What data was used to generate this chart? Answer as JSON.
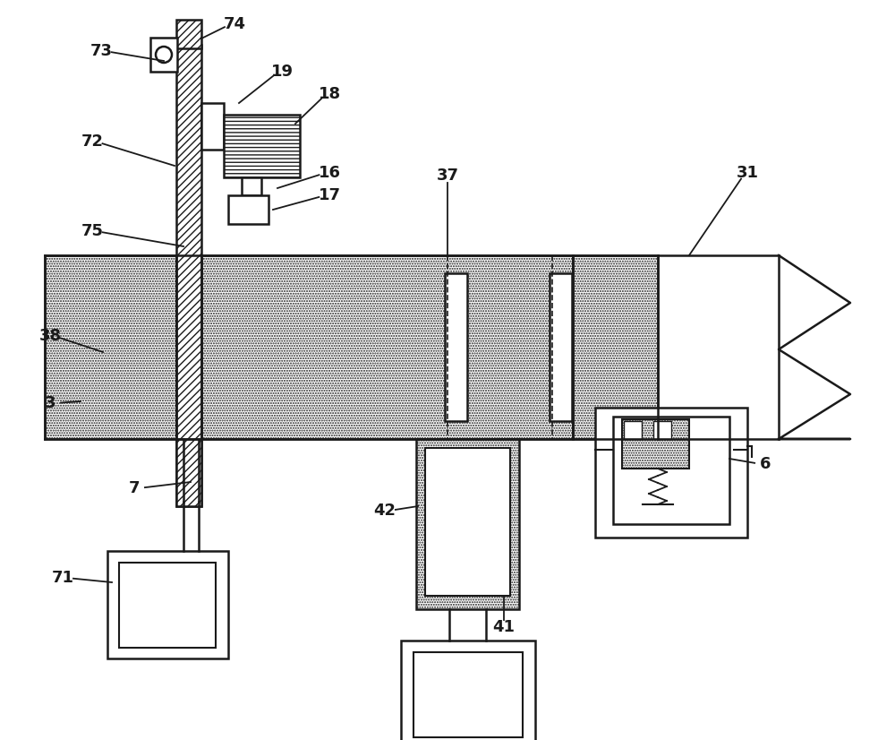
{
  "bg": "#ffffff",
  "lc": "#1a1a1a",
  "lw": 1.8,
  "label_fs": 13,
  "label_fw": "bold",
  "labels": {
    "73": [
      113,
      57,
      183,
      68
    ],
    "74": [
      262,
      27,
      225,
      43
    ],
    "19": [
      315,
      80,
      267,
      115
    ],
    "18": [
      368,
      105,
      330,
      138
    ],
    "72": [
      103,
      158,
      195,
      185
    ],
    "16": [
      368,
      193,
      310,
      210
    ],
    "17": [
      368,
      218,
      305,
      234
    ],
    "75": [
      103,
      258,
      205,
      275
    ],
    "38": [
      56,
      375,
      115,
      393
    ],
    "3": [
      56,
      450,
      90,
      448
    ],
    "37": [
      500,
      196,
      500,
      285
    ],
    "31": [
      835,
      193,
      770,
      285
    ],
    "7": [
      150,
      545,
      213,
      538
    ],
    "71": [
      70,
      645,
      125,
      650
    ],
    "42": [
      430,
      570,
      467,
      565
    ],
    "41": [
      563,
      700,
      563,
      665
    ],
    "6": [
      855,
      518,
      815,
      512
    ]
  }
}
